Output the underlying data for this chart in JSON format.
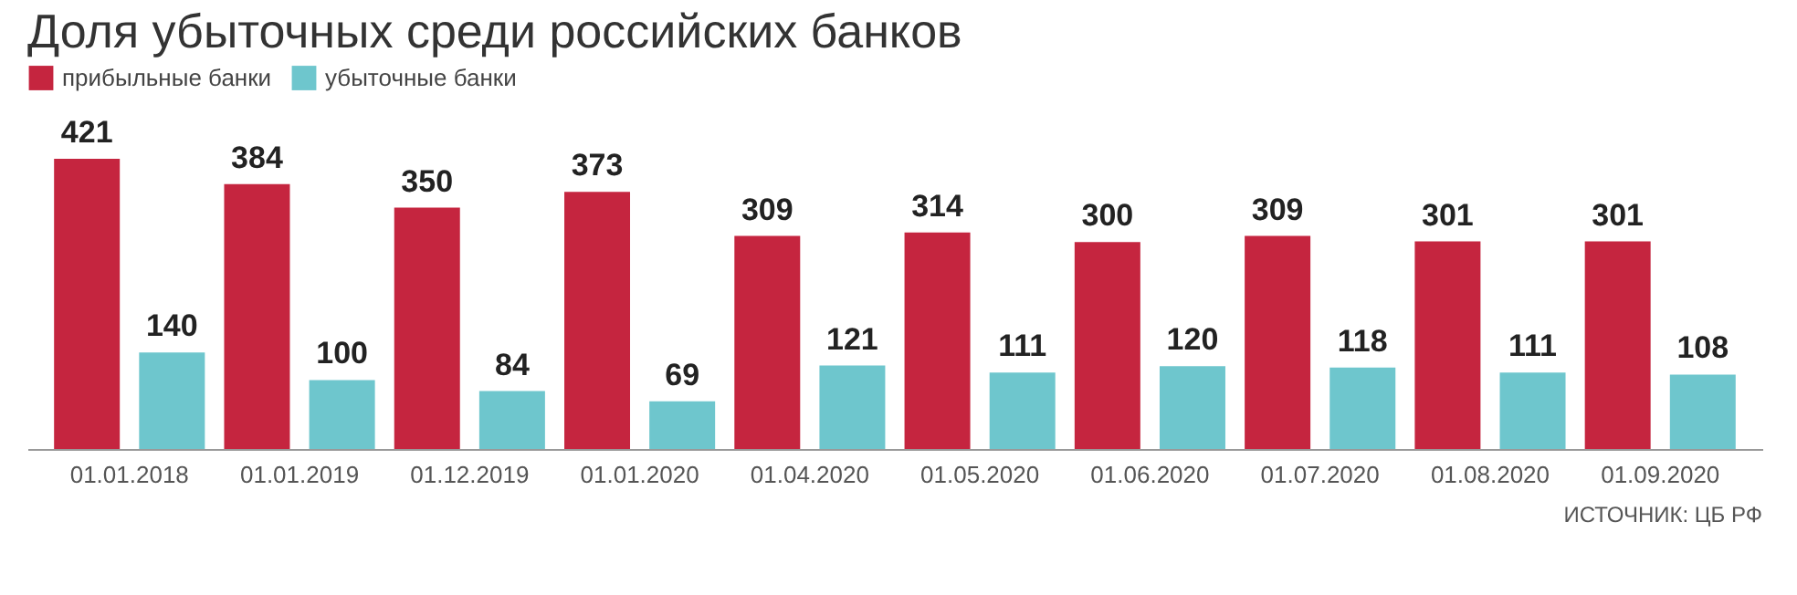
{
  "chart_data": {
    "type": "bar",
    "title": "Доля убыточных среди российских банков",
    "categories": [
      "01.01.2018",
      "01.01.2019",
      "01.12.2019",
      "01.01.2020",
      "01.04.2020",
      "01.05.2020",
      "01.06.2020",
      "01.07.2020",
      "01.08.2020",
      "01.09.2020"
    ],
    "series": [
      {
        "name": "прибыльные банки",
        "color": "#c5253f",
        "values": [
          421,
          384,
          350,
          373,
          309,
          314,
          300,
          309,
          301,
          301
        ]
      },
      {
        "name": "убыточные банки",
        "color": "#6ec6cd",
        "values": [
          140,
          100,
          84,
          69,
          121,
          111,
          120,
          118,
          111,
          108
        ]
      }
    ],
    "data_labels": true,
    "legend": "top left",
    "grid": false,
    "tick_labels": "x",
    "annotations": [
      "ИСТОЧНИК: ЦБ РФ"
    ]
  }
}
